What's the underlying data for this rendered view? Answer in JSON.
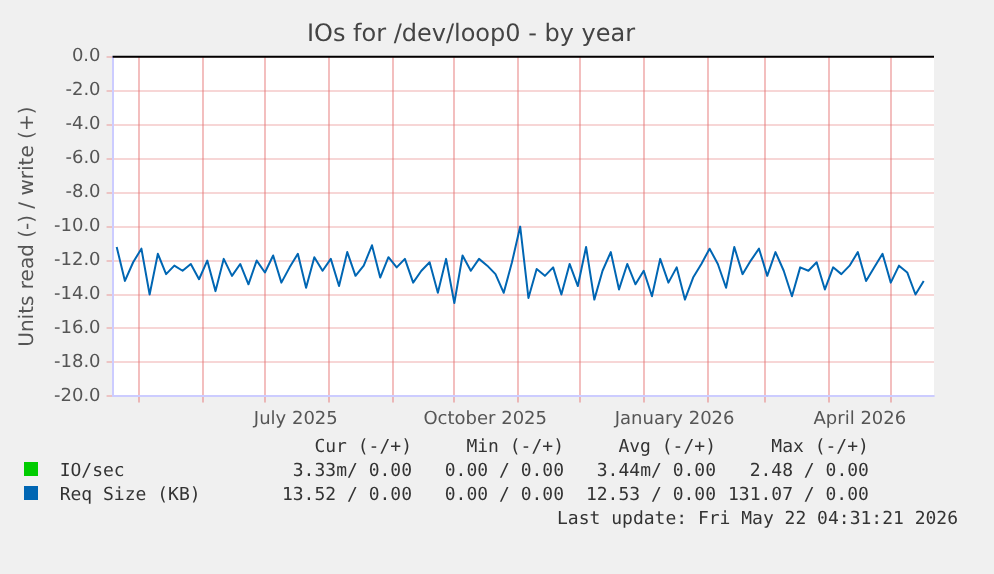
{
  "chart_data": {
    "type": "line",
    "title": "IOs for /dev/loop0 - by year",
    "ylabel": "Units read (-) / write (+)",
    "xlim": [
      "2025-04-18",
      "2026-05-22"
    ],
    "xticks": [
      {
        "value": "2025-05-01",
        "label": null
      },
      {
        "value": "2025-06-01",
        "label": null
      },
      {
        "value": "2025-07-01",
        "label": null
      },
      {
        "value": "2025-07-16",
        "label": "July 2025"
      },
      {
        "value": "2025-08-01",
        "label": null
      },
      {
        "value": "2025-09-01",
        "label": null
      },
      {
        "value": "2025-10-01",
        "label": null
      },
      {
        "value": "2025-10-16",
        "label": "October 2025"
      },
      {
        "value": "2025-11-01",
        "label": null
      },
      {
        "value": "2025-12-01",
        "label": null
      },
      {
        "value": "2026-01-01",
        "label": null
      },
      {
        "value": "2026-01-16",
        "label": "January 2026"
      },
      {
        "value": "2026-02-01",
        "label": null
      },
      {
        "value": "2026-03-01",
        "label": null
      },
      {
        "value": "2026-04-01",
        "label": null
      },
      {
        "value": "2026-04-16",
        "label": "April 2026"
      },
      {
        "value": "2026-05-01",
        "label": null
      }
    ],
    "ylim": [
      -20,
      0
    ],
    "yticks": [
      {
        "value": -20,
        "label": "-20.0"
      },
      {
        "value": -18,
        "label": "-18.0"
      },
      {
        "value": -16,
        "label": "-16.0"
      },
      {
        "value": -14,
        "label": "-14.0"
      },
      {
        "value": -12,
        "label": "-12.0"
      },
      {
        "value": -10,
        "label": "-10.0"
      },
      {
        "value": -8,
        "label": "-8.0"
      },
      {
        "value": -6,
        "label": "-6.0"
      },
      {
        "value": -4,
        "label": "-4.0"
      },
      {
        "value": -2,
        "label": "-2.0"
      },
      {
        "value": 0,
        "label": "0.0"
      }
    ],
    "grid": true,
    "legend": "bottom",
    "marker": "none",
    "line_style": "solid",
    "ref_lines": [
      {
        "axis": "y",
        "value": 0,
        "color": "#000000"
      }
    ],
    "x": [
      "2025-04-20",
      "2025-04-24",
      "2025-04-28",
      "2025-05-02",
      "2025-05-06",
      "2025-05-10",
      "2025-05-14",
      "2025-05-18",
      "2025-05-22",
      "2025-05-26",
      "2025-05-30",
      "2025-06-03",
      "2025-06-07",
      "2025-06-11",
      "2025-06-15",
      "2025-06-19",
      "2025-06-23",
      "2025-06-27",
      "2025-07-01",
      "2025-07-05",
      "2025-07-09",
      "2025-07-13",
      "2025-07-17",
      "2025-07-21",
      "2025-07-25",
      "2025-07-29",
      "2025-08-02",
      "2025-08-06",
      "2025-08-10",
      "2025-08-14",
      "2025-08-18",
      "2025-08-22",
      "2025-08-26",
      "2025-08-30",
      "2025-09-03",
      "2025-09-07",
      "2025-09-11",
      "2025-09-15",
      "2025-09-19",
      "2025-09-23",
      "2025-09-27",
      "2025-10-01",
      "2025-10-05",
      "2025-10-09",
      "2025-10-13",
      "2025-10-17",
      "2025-10-21",
      "2025-10-25",
      "2025-10-29",
      "2025-11-02",
      "2025-11-06",
      "2025-11-10",
      "2025-11-14",
      "2025-11-18",
      "2025-11-22",
      "2025-11-26",
      "2025-11-30",
      "2025-12-04",
      "2025-12-08",
      "2025-12-12",
      "2025-12-16",
      "2025-12-20",
      "2025-12-24",
      "2025-12-28",
      "2026-01-01",
      "2026-01-05",
      "2026-01-09",
      "2026-01-13",
      "2026-01-17",
      "2026-01-21",
      "2026-01-25",
      "2026-01-29",
      "2026-02-02",
      "2026-02-06",
      "2026-02-10",
      "2026-02-14",
      "2026-02-18",
      "2026-02-22",
      "2026-02-26",
      "2026-03-02",
      "2026-03-06",
      "2026-03-10",
      "2026-03-14",
      "2026-03-18",
      "2026-03-22",
      "2026-03-26",
      "2026-03-30",
      "2026-04-03",
      "2026-04-07",
      "2026-04-11",
      "2026-04-15",
      "2026-04-19",
      "2026-04-23",
      "2026-04-27",
      "2026-05-01",
      "2026-05-05",
      "2026-05-09",
      "2026-05-13",
      "2026-05-17"
    ],
    "series": [
      {
        "name": "IO/sec",
        "color": "#00cc00",
        "values": [
          null,
          null,
          null,
          null,
          null,
          null,
          null,
          null,
          null,
          null,
          null,
          null,
          null,
          null,
          null,
          null,
          null,
          null,
          null,
          null,
          null,
          null,
          null,
          null,
          null,
          null,
          null,
          null,
          null,
          null,
          null,
          null,
          null,
          null,
          null,
          null,
          null,
          null,
          null,
          null,
          null,
          null,
          null,
          null,
          null,
          null,
          null,
          null,
          null,
          null,
          null,
          null,
          null,
          null,
          null,
          null,
          null,
          null,
          null,
          null,
          null,
          null,
          null,
          null,
          null,
          null,
          null,
          null,
          null,
          null,
          null,
          null,
          null,
          null,
          null,
          null,
          null,
          null,
          null,
          null,
          null,
          null,
          null,
          null,
          null,
          null,
          null,
          null,
          null,
          null,
          null,
          null,
          null,
          null,
          null,
          null,
          null,
          null,
          null
        ]
      },
      {
        "name": "Req Size (KB)",
        "color": "#0066b3",
        "values": [
          -11.2,
          -13.2,
          -12.1,
          -11.3,
          -14.0,
          -11.6,
          -12.8,
          -12.3,
          -12.6,
          -12.2,
          -13.1,
          -12.0,
          -13.8,
          -11.9,
          -12.9,
          -12.2,
          -13.4,
          -12.0,
          -12.7,
          -11.7,
          -13.3,
          -12.4,
          -11.6,
          -13.6,
          -11.8,
          -12.6,
          -11.9,
          -13.5,
          -11.5,
          -12.9,
          -12.3,
          -11.1,
          -13.0,
          -11.8,
          -12.4,
          -11.9,
          -13.3,
          -12.6,
          -12.1,
          -13.9,
          -11.9,
          -14.5,
          -11.7,
          -12.6,
          -11.9,
          -12.3,
          -12.8,
          -13.9,
          -12.1,
          -10.0,
          -14.2,
          -12.5,
          -12.9,
          -12.4,
          -14.0,
          -12.2,
          -13.5,
          -11.2,
          -14.3,
          -12.6,
          -11.5,
          -13.7,
          -12.2,
          -13.4,
          -12.6,
          -14.1,
          -11.9,
          -13.3,
          -12.4,
          -14.3,
          -13.0,
          -12.2,
          -11.3,
          -12.2,
          -13.6,
          -11.2,
          -12.8,
          -12.0,
          -11.3,
          -12.9,
          -11.5,
          -12.6,
          -14.1,
          -12.4,
          -12.6,
          -12.1,
          -13.7,
          -12.4,
          -12.8,
          -12.3,
          -11.5,
          -13.2,
          -12.4,
          -11.6,
          -13.3,
          -12.3,
          -12.7,
          -14.0,
          -13.2
        ]
      }
    ],
    "annotations": [
      "Cur (-/+)",
      "Min (-/+)",
      "Avg (-/+)",
      "Max (-/+)",
      "3.33m/ 0.00",
      "0.00 / 0.00",
      "3.44m/ 0.00",
      "2.48 / 0.00",
      "13.52 / 0.00",
      "0.00 / 0.00",
      "12.53 / 0.00",
      "131.07 / 0.00",
      "Last update: Fri May 22 04:31:21 2026"
    ]
  }
}
